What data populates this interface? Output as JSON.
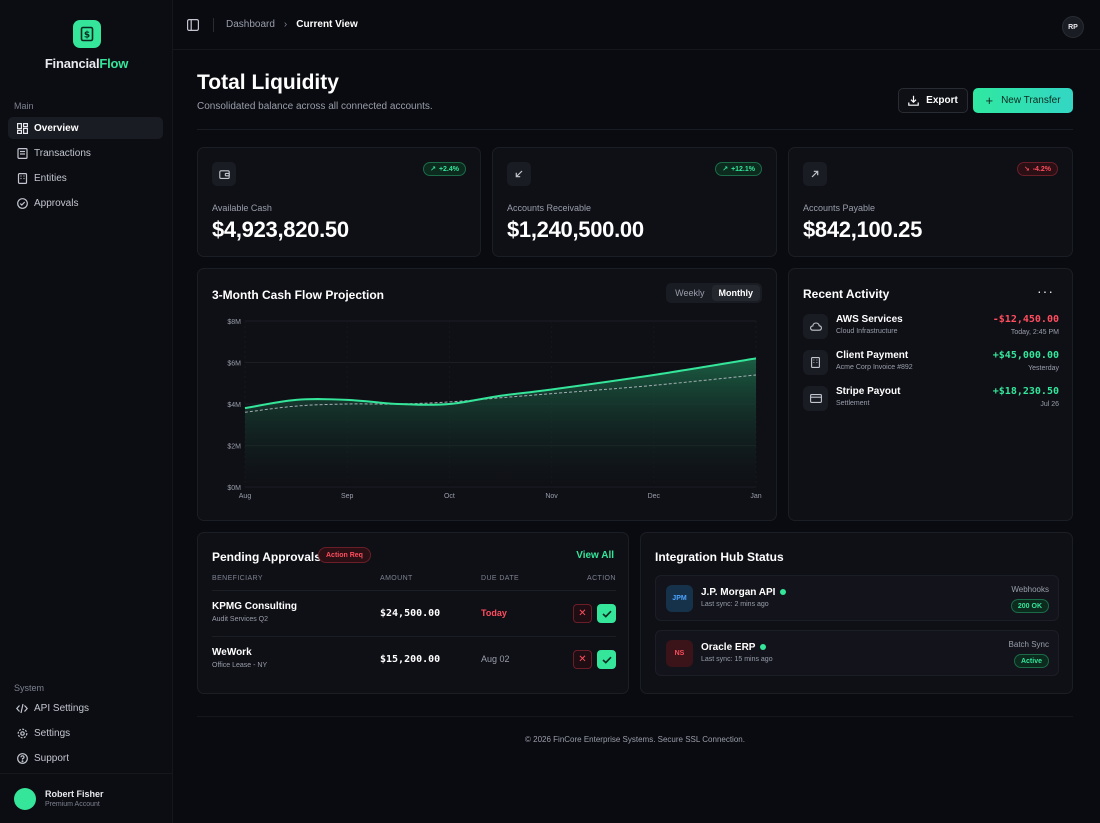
{
  "brand": {
    "name_part1": "Financial",
    "name_part2": "Flow",
    "logo_icon": "dollar-document-icon"
  },
  "sidebar": {
    "main_heading": "Main",
    "main_items": [
      {
        "label": "Overview",
        "icon": "grid-icon",
        "active": true
      },
      {
        "label": "Transactions",
        "icon": "receipt-icon"
      },
      {
        "label": "Entities",
        "icon": "building-icon"
      },
      {
        "label": "Approvals",
        "icon": "check-circle-icon"
      }
    ],
    "system_heading": "System",
    "system_items": [
      {
        "label": "API Settings",
        "icon": "code-icon"
      },
      {
        "label": "Settings",
        "icon": "gear-icon"
      },
      {
        "label": "Support",
        "icon": "help-icon"
      }
    ],
    "user": {
      "name": "Robert Fisher",
      "role": "Premium Account"
    }
  },
  "topbar": {
    "breadcrumb": [
      "Dashboard",
      "Current View"
    ],
    "avatar_initials": "RP"
  },
  "header": {
    "title": "Total Liquidity",
    "subtitle": "Consolidated balance across all connected accounts.",
    "export_label": "Export",
    "new_transfer_label": "New Transfer"
  },
  "stats": [
    {
      "label": "Available Cash",
      "value": "$4,923,820.50",
      "change": "+2.4%",
      "trend": "up",
      "icon": "wallet-icon"
    },
    {
      "label": "Accounts Receivable",
      "value": "$1,240,500.00",
      "change": "+12.1%",
      "trend": "up",
      "icon": "arrow-down-left-icon"
    },
    {
      "label": "Accounts Payable",
      "value": "$842,100.25",
      "change": "-4.2%",
      "trend": "down",
      "icon": "arrow-up-right-icon"
    }
  ],
  "chart": {
    "title": "3-Month Cash Flow Projection",
    "toggle": [
      "Weekly",
      "Monthly"
    ],
    "toggle_active": "Monthly"
  },
  "chart_data": {
    "type": "area",
    "title": "3-Month Cash Flow Projection",
    "categories": [
      "Aug",
      "Sep",
      "Oct",
      "Nov",
      "Dec",
      "Jan"
    ],
    "y_tick_labels": [
      "$0M",
      "$2M",
      "$4M",
      "$6M",
      "$8M"
    ],
    "ylim": [
      0,
      8
    ],
    "series": [
      {
        "style": "solid-area",
        "x": [
          0,
          0.5,
          1,
          1.5,
          2,
          2.5,
          3,
          4,
          5
        ],
        "values": [
          3.8,
          4.2,
          4.2,
          4.0,
          4.0,
          4.4,
          4.7,
          5.4,
          6.2
        ]
      },
      {
        "style": "dashed",
        "x": [
          0,
          0.5,
          1,
          1.5,
          2,
          2.5,
          3,
          4,
          5
        ],
        "values": [
          3.6,
          3.9,
          4.0,
          4.0,
          4.1,
          4.3,
          4.5,
          4.9,
          5.4
        ]
      }
    ],
    "grid": true,
    "colors": {
      "line": "#34e59a",
      "dashed": "#c8ccd4",
      "fill_top": "#1d6b4b",
      "fill_bottom": "#0f1016"
    }
  },
  "activity": {
    "title": "Recent Activity",
    "more_label": "···",
    "items": [
      {
        "name": "AWS Services",
        "sub": "Cloud Infrastructure",
        "amount": "-$12,450.00",
        "sign": "neg",
        "time": "Today, 2:45 PM",
        "icon": "cloud-icon"
      },
      {
        "name": "Client Payment",
        "sub": "Acme Corp Invoice #892",
        "amount": "+$45,000.00",
        "sign": "pos",
        "time": "Yesterday",
        "icon": "building-icon"
      },
      {
        "name": "Stripe Payout",
        "sub": "Settlement",
        "amount": "+$18,230.50",
        "sign": "pos",
        "time": "Jul 26",
        "icon": "credit-card-icon"
      }
    ]
  },
  "approvals": {
    "title": "Pending Approvals",
    "badge": "Action Req",
    "view_all": "View All",
    "columns": [
      "BENEFICIARY",
      "AMOUNT",
      "DUE DATE",
      "ACTION"
    ],
    "rows": [
      {
        "name": "KPMG Consulting",
        "sub": "Audit Services Q2",
        "amount": "$24,500.00",
        "due": "Today",
        "due_color": "#ff4d5e"
      },
      {
        "name": "WeWork",
        "sub": "Office Lease - NY",
        "amount": "$15,200.00",
        "due": "Aug 02",
        "due_color": "#9a9eab"
      }
    ],
    "reject_label": "✕"
  },
  "integrations": {
    "title": "Integration Hub Status",
    "items": [
      {
        "logo": "JPM",
        "logo_bg": "#16324a",
        "logo_color": "#4da3ff",
        "name": "J.P. Morgan API",
        "sync": "Last sync: 2 mins ago",
        "type": "Webhooks",
        "status": "200 OK"
      },
      {
        "logo": "NS",
        "logo_bg": "#3a1418",
        "logo_color": "#ff4d5e",
        "name": "Oracle ERP",
        "sync": "Last sync: 15 mins ago",
        "type": "Batch Sync",
        "status": "Active"
      }
    ]
  },
  "footer": {
    "text": "© 2026 FinCore Enterprise Systems. Secure SSL Connection."
  }
}
